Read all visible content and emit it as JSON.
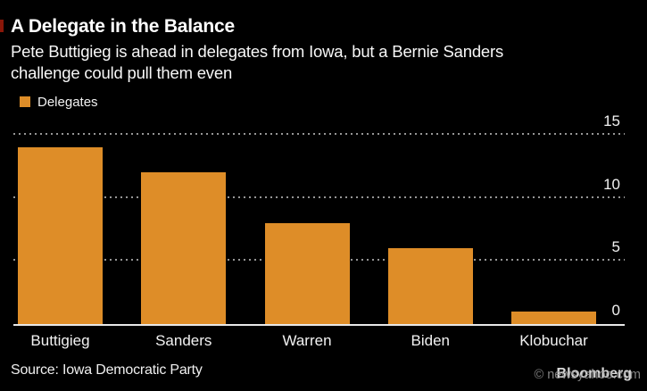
{
  "header": {
    "title": "A Delegate in the Balance",
    "subtitle_lines": [
      "Pete Buttigieg is ahead in delegates from Iowa, but a Bernie Sanders",
      "challenge could pull them even"
    ]
  },
  "legend": {
    "label": "Delegates"
  },
  "chart_data": {
    "type": "bar",
    "title": "A Delegate in the Balance",
    "subtitle": "Pete Buttigieg is ahead in delegates from Iowa, but a Bernie Sanders challenge could pull them even",
    "series_label": "Delegates",
    "categories": [
      "Buttigieg",
      "Sanders",
      "Warren",
      "Biden",
      "Klobuchar"
    ],
    "values": [
      14,
      12,
      8,
      6,
      1
    ],
    "ylim": [
      0,
      15
    ],
    "yticks": [
      0,
      5,
      10,
      15
    ],
    "y_axis_side": "right",
    "grid": "horizontal-dotted",
    "legend_position": "top-left",
    "bar_color": "#de8d28",
    "background_color": "#000000",
    "source": "Source: Iowa Democratic Party"
  },
  "footer": {
    "source": "Source: Iowa Democratic Party",
    "watermark_site": "© newsyahoo.com",
    "watermark_brand": "Bloomberg"
  },
  "colors": {
    "accent_red": "#8a1709",
    "bar_orange": "#de8d28",
    "gridline_gray": "#969696",
    "text_white": "#f2f2f2"
  }
}
